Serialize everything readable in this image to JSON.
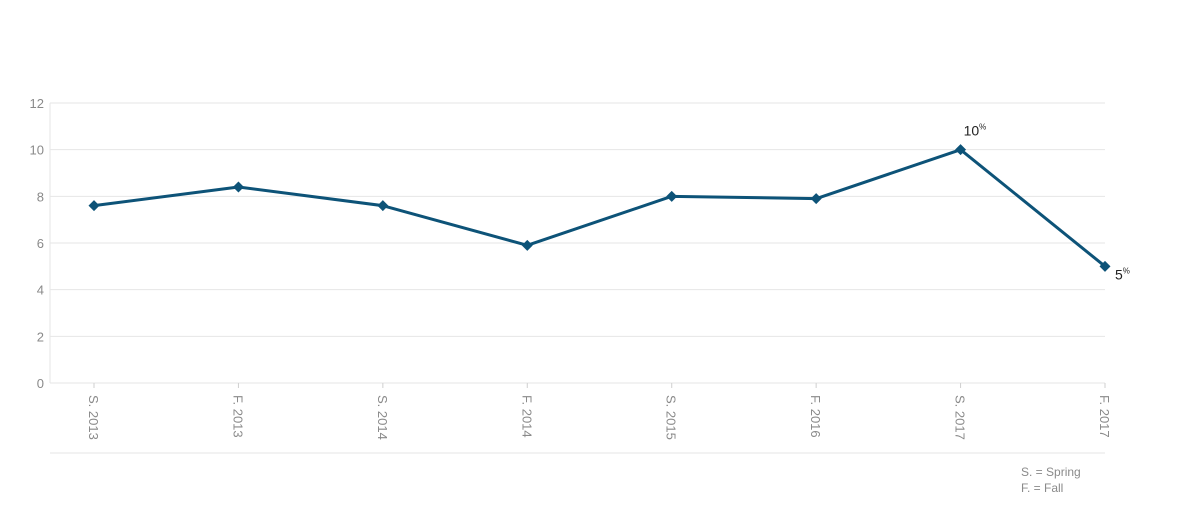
{
  "chart_data": {
    "type": "line",
    "categories": [
      "S. 2013",
      "F. 2013",
      "S. 2014",
      "F. 2014",
      "S. 2015",
      "F. 2016",
      "S. 2017",
      "F. 2017"
    ],
    "values": [
      7.6,
      8.4,
      7.6,
      5.9,
      8.0,
      7.9,
      10.0,
      5.0
    ],
    "ylim": [
      0,
      12
    ],
    "yticks": [
      "0",
      "2",
      "4",
      "6",
      "8",
      "10",
      "12"
    ],
    "grid": true,
    "line_color": "#0d5378",
    "grid_color": "#e6e6e6",
    "annotations": [
      {
        "index": 6,
        "value": "10",
        "unit": "%"
      },
      {
        "index": 7,
        "value": "5",
        "unit": "%"
      }
    ],
    "legend": {
      "placement": "bottom-right",
      "lines": [
        "S. = Spring",
        "F. = Fall"
      ]
    }
  }
}
